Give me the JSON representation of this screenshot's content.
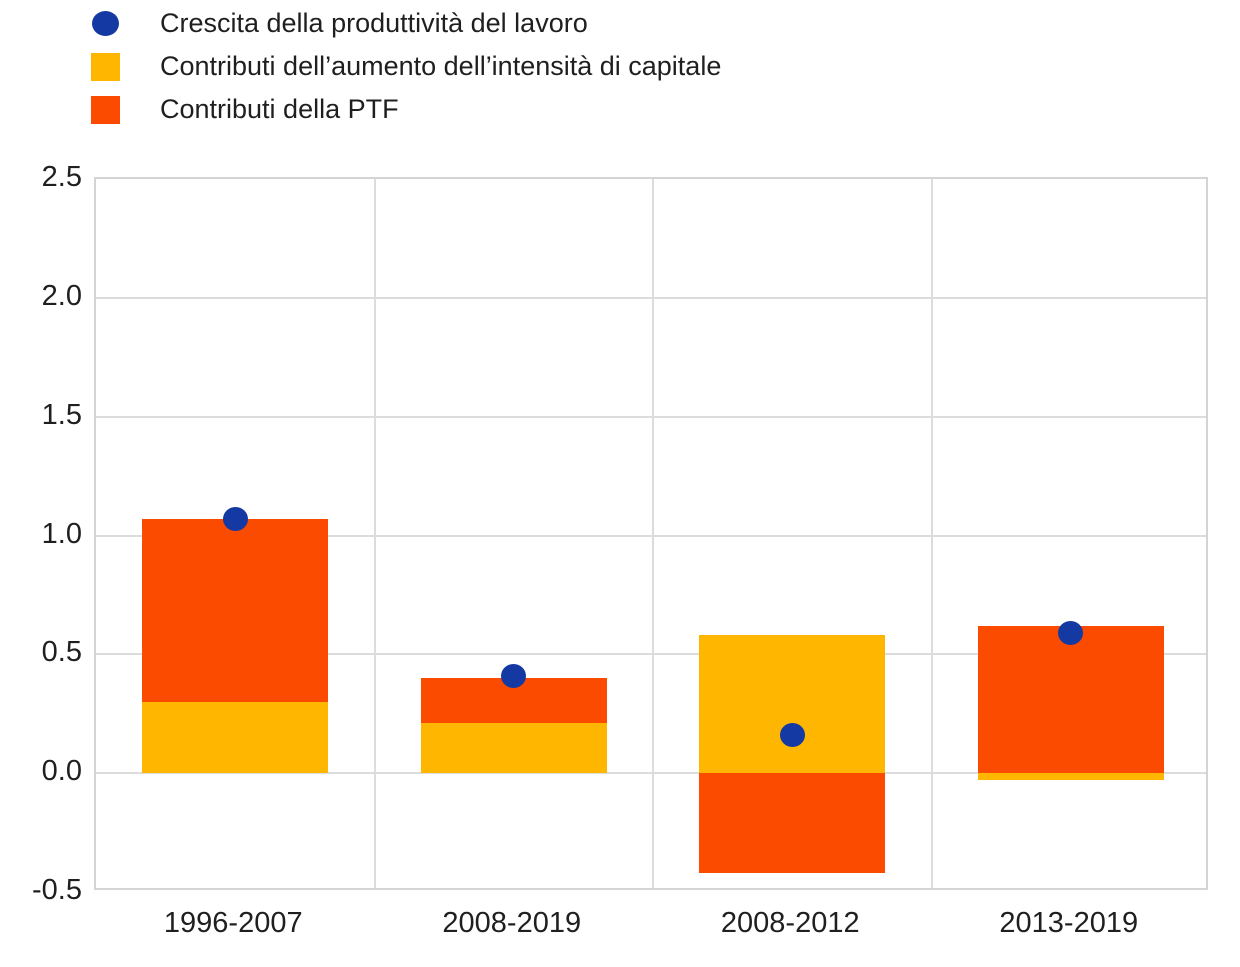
{
  "chart_data": {
    "type": "bar",
    "subtype": "stacked-bars-with-point-markers",
    "title": "",
    "xlabel": "",
    "ylabel": "",
    "categories": [
      "1996-2007",
      "2008-2019",
      "2008-2012",
      "2013-2019"
    ],
    "series": [
      {
        "name": "Crescita della produttività del lavoro",
        "render": "point",
        "marker": "circle",
        "color": "#1539A3",
        "values": [
          1.07,
          0.41,
          0.16,
          0.59
        ]
      },
      {
        "name": "Contributi dell’aumento dell’intensità di capitale",
        "render": "bar",
        "marker": "square",
        "color": "#FEB600",
        "values": [
          0.3,
          0.21,
          0.58,
          -0.03
        ]
      },
      {
        "name": "Contributi della PTF",
        "render": "bar",
        "marker": "square",
        "color": "#FB4B00",
        "values": [
          0.77,
          0.19,
          -0.42,
          0.62
        ]
      }
    ],
    "ylim": [
      -0.5,
      2.5
    ],
    "y_ticks": [
      2.5,
      2.0,
      1.5,
      1.0,
      0.5,
      0.0,
      -0.5
    ],
    "grid": true,
    "grid_color": "#DCDCDC",
    "legend_position": "top-left",
    "background_color": "#FFFFFF",
    "text_color": "#1F1F1F"
  }
}
